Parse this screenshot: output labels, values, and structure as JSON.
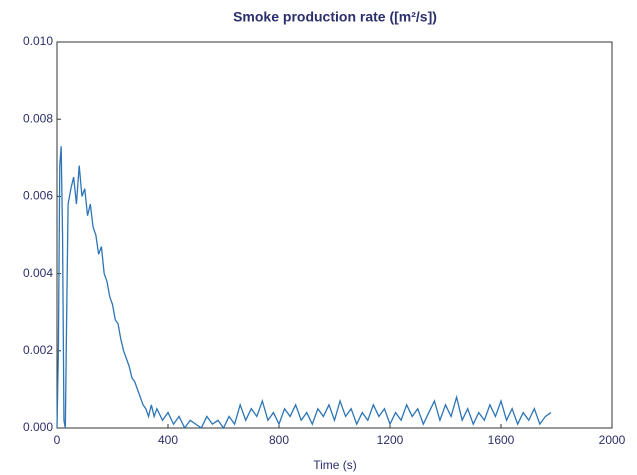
{
  "chart_data": {
    "type": "line",
    "title": "Smoke production rate ([m²/s])",
    "xlabel": "Time (s)",
    "color": "#2e75b6",
    "x": [
      0,
      5,
      10,
      15,
      20,
      25,
      30,
      35,
      40,
      50,
      60,
      70,
      80,
      90,
      100,
      110,
      120,
      130,
      140,
      150,
      160,
      170,
      180,
      190,
      200,
      210,
      220,
      230,
      240,
      250,
      260,
      270,
      280,
      290,
      300,
      310,
      320,
      330,
      340,
      350,
      360,
      380,
      400,
      420,
      440,
      460,
      480,
      500,
      520,
      540,
      560,
      580,
      600,
      620,
      640,
      660,
      680,
      700,
      720,
      740,
      760,
      780,
      800,
      820,
      840,
      860,
      880,
      900,
      920,
      940,
      960,
      980,
      1000,
      1020,
      1040,
      1060,
      1080,
      1100,
      1120,
      1140,
      1160,
      1180,
      1200,
      1220,
      1240,
      1260,
      1280,
      1300,
      1320,
      1340,
      1360,
      1380,
      1400,
      1420,
      1440,
      1460,
      1480,
      1500,
      1520,
      1540,
      1560,
      1580,
      1600,
      1620,
      1640,
      1660,
      1680,
      1700,
      1720,
      1740,
      1760,
      1780
    ],
    "values": [
      0.0,
      0.002,
      0.0068,
      0.0073,
      0.005,
      0.0002,
      0.0,
      0.003,
      0.0058,
      0.0062,
      0.0065,
      0.0058,
      0.0068,
      0.006,
      0.0062,
      0.0055,
      0.0058,
      0.0052,
      0.005,
      0.0045,
      0.0047,
      0.004,
      0.0038,
      0.0034,
      0.0032,
      0.0028,
      0.0027,
      0.0023,
      0.002,
      0.0018,
      0.0016,
      0.0013,
      0.0012,
      0.001,
      0.0008,
      0.0006,
      0.0005,
      0.0003,
      0.0006,
      0.0003,
      0.0005,
      0.0002,
      0.0004,
      0.0001,
      0.0003,
      0.0,
      0.0002,
      0.0001,
      0.0,
      0.0003,
      0.0001,
      0.0002,
      0.0,
      0.0003,
      0.0001,
      0.0006,
      0.0002,
      0.0005,
      0.0003,
      0.0007,
      0.0002,
      0.0004,
      0.0001,
      0.0005,
      0.0003,
      0.0006,
      0.0002,
      0.0004,
      0.0001,
      0.0005,
      0.0003,
      0.0006,
      0.0002,
      0.0007,
      0.0003,
      0.0005,
      0.0001,
      0.0004,
      0.0002,
      0.0006,
      0.0003,
      0.0005,
      0.0001,
      0.0004,
      0.0002,
      0.0006,
      0.0003,
      0.0005,
      0.0001,
      0.0004,
      0.0007,
      0.0002,
      0.0006,
      0.0003,
      0.0008,
      0.0002,
      0.0005,
      0.0001,
      0.0004,
      0.0002,
      0.0006,
      0.0003,
      0.0007,
      0.0002,
      0.0005,
      0.0001,
      0.0004,
      0.0002,
      0.0005,
      0.0001,
      0.0003,
      0.0004
    ],
    "xlim": [
      0,
      2000
    ],
    "xticks": [
      0,
      400,
      800,
      1200,
      1600,
      2000
    ],
    "ylim": [
      0,
      0.01
    ],
    "yticks": [
      {
        "value": 0,
        "label": "0.000"
      },
      {
        "value": 0.002,
        "label": "0.002"
      },
      {
        "value": 0.004,
        "label": "0.004"
      },
      {
        "value": 0.006,
        "label": "0.006"
      },
      {
        "value": 0.008,
        "label": "0.008"
      },
      {
        "value": 0.01,
        "label": "0.010"
      }
    ]
  }
}
